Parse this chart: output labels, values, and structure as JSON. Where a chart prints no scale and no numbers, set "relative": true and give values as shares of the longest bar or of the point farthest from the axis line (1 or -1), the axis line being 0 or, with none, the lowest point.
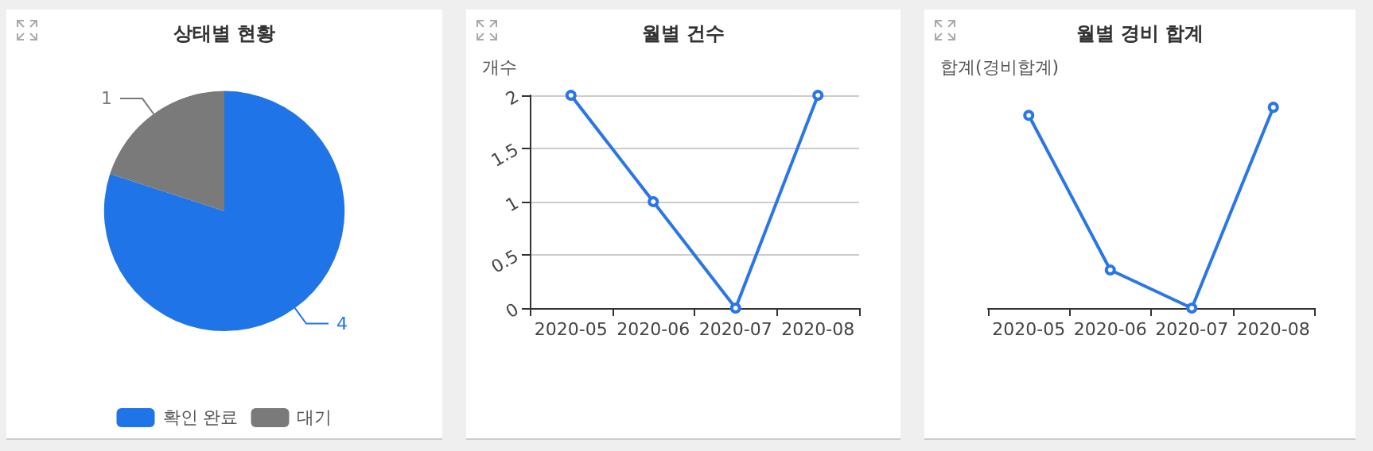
{
  "chart_data": [
    {
      "type": "pie",
      "title": "상태별 현황",
      "categories": [
        "확인 완료",
        "대기"
      ],
      "values": [
        4,
        1
      ],
      "colors": [
        "#1f75e8",
        "#7a7a7a"
      ],
      "data_labels": true,
      "legend": "bottom"
    },
    {
      "type": "line",
      "title": "월별 건수",
      "ylabel": "개수",
      "categories": [
        "2020-05",
        "2020-06",
        "2020-07",
        "2020-08"
      ],
      "series": [
        {
          "color": "#2a76e8",
          "values": [
            2,
            1,
            0,
            2
          ]
        }
      ],
      "ylim": [
        0,
        2
      ],
      "yticks": [
        0,
        0.5,
        1,
        1.5,
        2
      ],
      "grid": "y",
      "marker": "circle",
      "line_style": "solid"
    },
    {
      "type": "line",
      "title": "월별 경비 합계",
      "ylabel": "합계(경비합계)",
      "categories": [
        "2020-05",
        "2020-06",
        "2020-07",
        "2020-08"
      ],
      "series": [
        {
          "color": "#2a76e8",
          "values": [
            0.96,
            0.19,
            0,
            1
          ]
        }
      ],
      "relative": true,
      "marker": "circle",
      "line_style": "solid"
    }
  ]
}
